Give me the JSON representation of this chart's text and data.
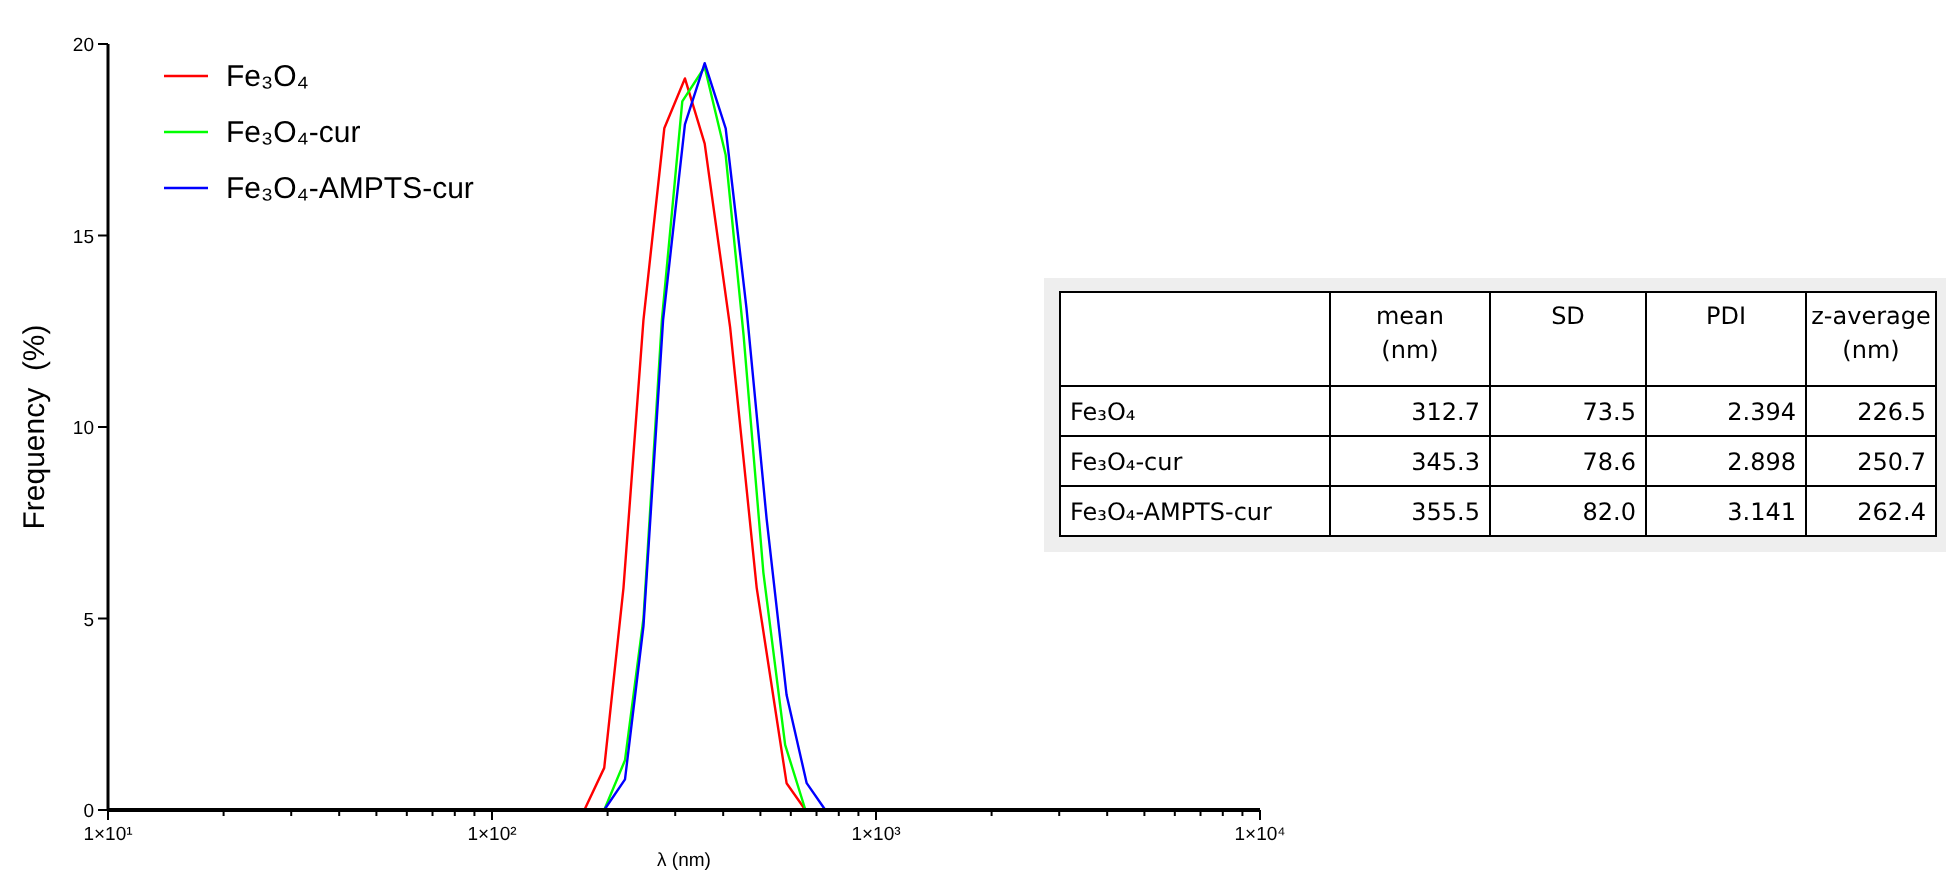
{
  "chart_data": [
    {
      "type": "line",
      "xlabel": "λ (nm)",
      "ylabel": "Frequency  (%)",
      "log": "x",
      "xlim": [
        10,
        10000
      ],
      "ylim": [
        0,
        20
      ],
      "xticks": [
        {
          "value": 10,
          "label": "1×10¹"
        },
        {
          "value": 20,
          "label": null
        },
        {
          "value": 30,
          "label": null
        },
        {
          "value": 40,
          "label": null
        },
        {
          "value": 50,
          "label": null
        },
        {
          "value": 60,
          "label": null
        },
        {
          "value": 70,
          "label": null
        },
        {
          "value": 80,
          "label": null
        },
        {
          "value": 90,
          "label": null
        },
        {
          "value": 100,
          "label": "1×10²"
        },
        {
          "value": 200,
          "label": null
        },
        {
          "value": 300,
          "label": null
        },
        {
          "value": 400,
          "label": null
        },
        {
          "value": 500,
          "label": null
        },
        {
          "value": 600,
          "label": null
        },
        {
          "value": 700,
          "label": null
        },
        {
          "value": 800,
          "label": null
        },
        {
          "value": 900,
          "label": null
        },
        {
          "value": 1000,
          "label": "1×10³"
        },
        {
          "value": 2000,
          "label": null
        },
        {
          "value": 3000,
          "label": null
        },
        {
          "value": 4000,
          "label": null
        },
        {
          "value": 5000,
          "label": null
        },
        {
          "value": 6000,
          "label": null
        },
        {
          "value": 7000,
          "label": null
        },
        {
          "value": 8000,
          "label": null
        },
        {
          "value": 9000,
          "label": null
        },
        {
          "value": 10000,
          "label": "1×10⁴"
        }
      ],
      "yticks": [
        0,
        5,
        10,
        15,
        20
      ],
      "legend": "top left",
      "series": [
        {
          "name": "Fe₃O₄",
          "color": "#ff0000",
          "x": [
            10,
            174,
            196,
            220,
            248,
            281,
            318,
            358,
            417,
            489,
            585,
            655,
            2100
          ],
          "values": [
            0,
            0,
            1.1,
            5.8,
            12.8,
            17.8,
            19.1,
            17.4,
            12.6,
            5.8,
            0.7,
            0,
            0
          ]
        },
        {
          "name": "Fe₃O₄-cur",
          "color": "#00ff00",
          "x": [
            10,
            196,
            222,
            248,
            277,
            313,
            358,
            406,
            452,
            509,
            580,
            655,
            2100
          ],
          "values": [
            0,
            0,
            1.3,
            5.0,
            12.8,
            18.5,
            19.4,
            17.1,
            12.4,
            6.2,
            1.7,
            0,
            0
          ]
        },
        {
          "name": "Fe₃O₄-AMPTS-cur",
          "color": "#0000ff",
          "x": [
            10,
            196,
            222,
            248,
            279,
            318,
            358,
            406,
            460,
            519,
            585,
            660,
            738,
            2100
          ],
          "values": [
            0,
            0,
            0.8,
            4.8,
            12.8,
            17.9,
            19.5,
            17.8,
            13.1,
            7.6,
            3.0,
            0.7,
            0,
            0
          ]
        }
      ]
    },
    {
      "type": "other",
      "categories": [
        null,
        "mean (nm)",
        "SD",
        "PDI",
        "z-average (nm)"
      ],
      "y_categories": [
        "Fe₃O₄",
        "Fe₃O₄-cur",
        "Fe₃O₄-AMPTS-cur"
      ],
      "cell_labels": [
        [
          "312.7",
          "73.5",
          "2.394",
          "226.5"
        ],
        [
          "345.3",
          "78.6",
          "2.898",
          "250.7"
        ],
        [
          "355.5",
          "82.0",
          "3.141",
          "262.4"
        ]
      ]
    }
  ]
}
